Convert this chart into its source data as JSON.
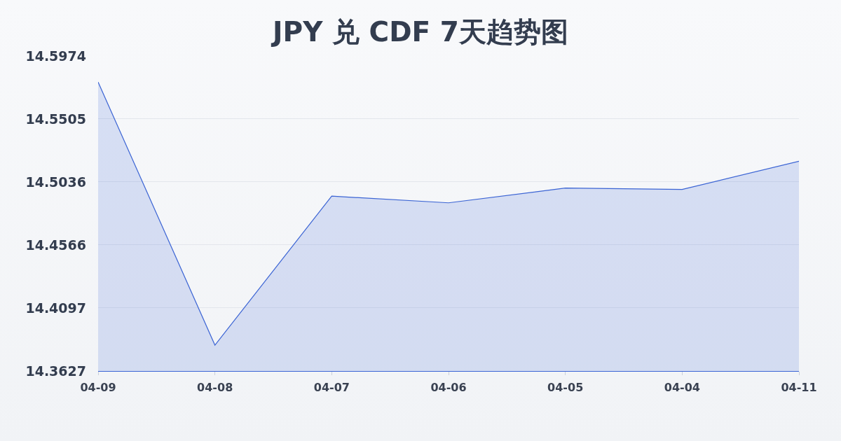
{
  "chart_data": {
    "type": "area",
    "title": "JPY 兑 CDF 7天趋势图",
    "categories": [
      "04-09",
      "04-08",
      "04-07",
      "04-06",
      "04-05",
      "04-04",
      "04-11"
    ],
    "series": [
      {
        "color": "#3b64d4",
        "values": [
          14.578,
          14.382,
          14.493,
          14.488,
          14.499,
          14.498,
          14.519
        ]
      }
    ],
    "ylim": [
      14.3627,
      14.5974
    ],
    "yticks": [
      14.3627,
      14.4097,
      14.4566,
      14.5036,
      14.5505,
      14.5974
    ],
    "grid": "y"
  }
}
